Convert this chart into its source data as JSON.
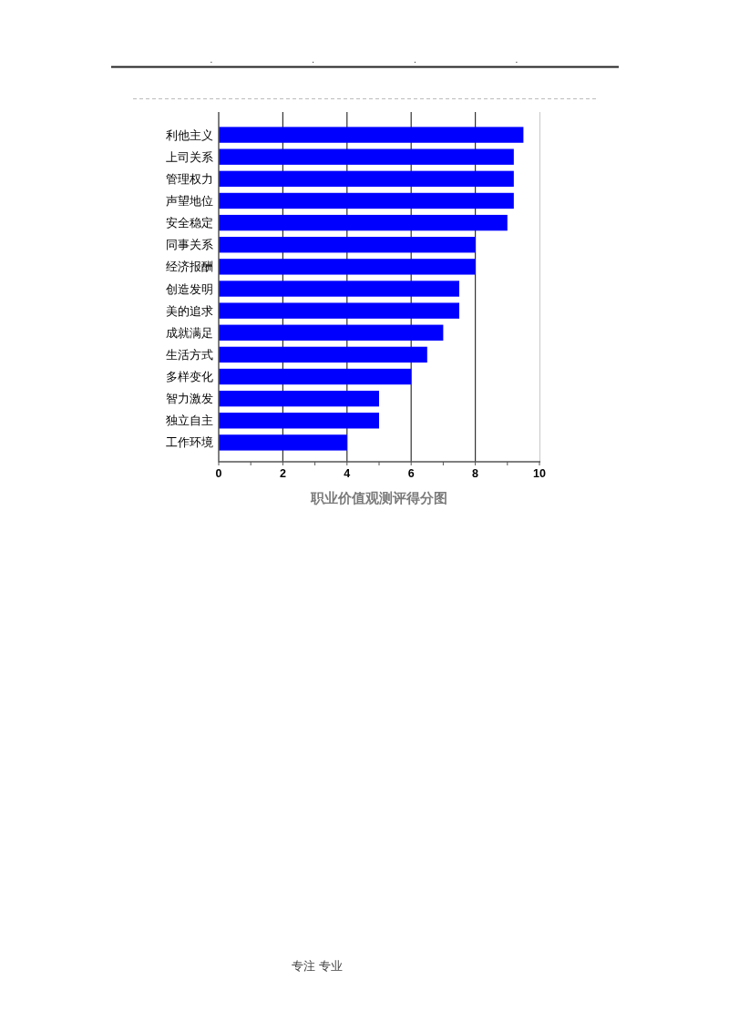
{
  "chart_data": {
    "type": "bar",
    "orientation": "horizontal",
    "title": "职业价值观测评得分图",
    "categories": [
      "利他主义",
      "上司关系",
      "管理权力",
      "声望地位",
      "安全稳定",
      "同事关系",
      "经济报酬",
      "创造发明",
      "美的追求",
      "成就满足",
      "生活方式",
      "多样变化",
      "智力激发",
      "独立自主",
      "工作环境"
    ],
    "values": [
      9.5,
      9.2,
      9.2,
      9.2,
      9.0,
      8.0,
      8.0,
      7.5,
      7.5,
      7.0,
      6.5,
      6.0,
      5.0,
      5.0,
      4.0
    ],
    "color": "#0000ff",
    "xlim": [
      0,
      10
    ],
    "xticks": [
      0,
      {
        "value": 1,
        "label": null
      },
      2,
      {
        "value": 3,
        "label": null
      },
      4,
      {
        "value": 5,
        "label": null
      },
      6,
      {
        "value": 7,
        "label": null
      },
      8,
      {
        "value": 9,
        "label": null
      },
      10
    ],
    "grid": "x",
    "annotations": [
      ".",
      ".",
      ".",
      ".",
      "专注 专业"
    ]
  }
}
